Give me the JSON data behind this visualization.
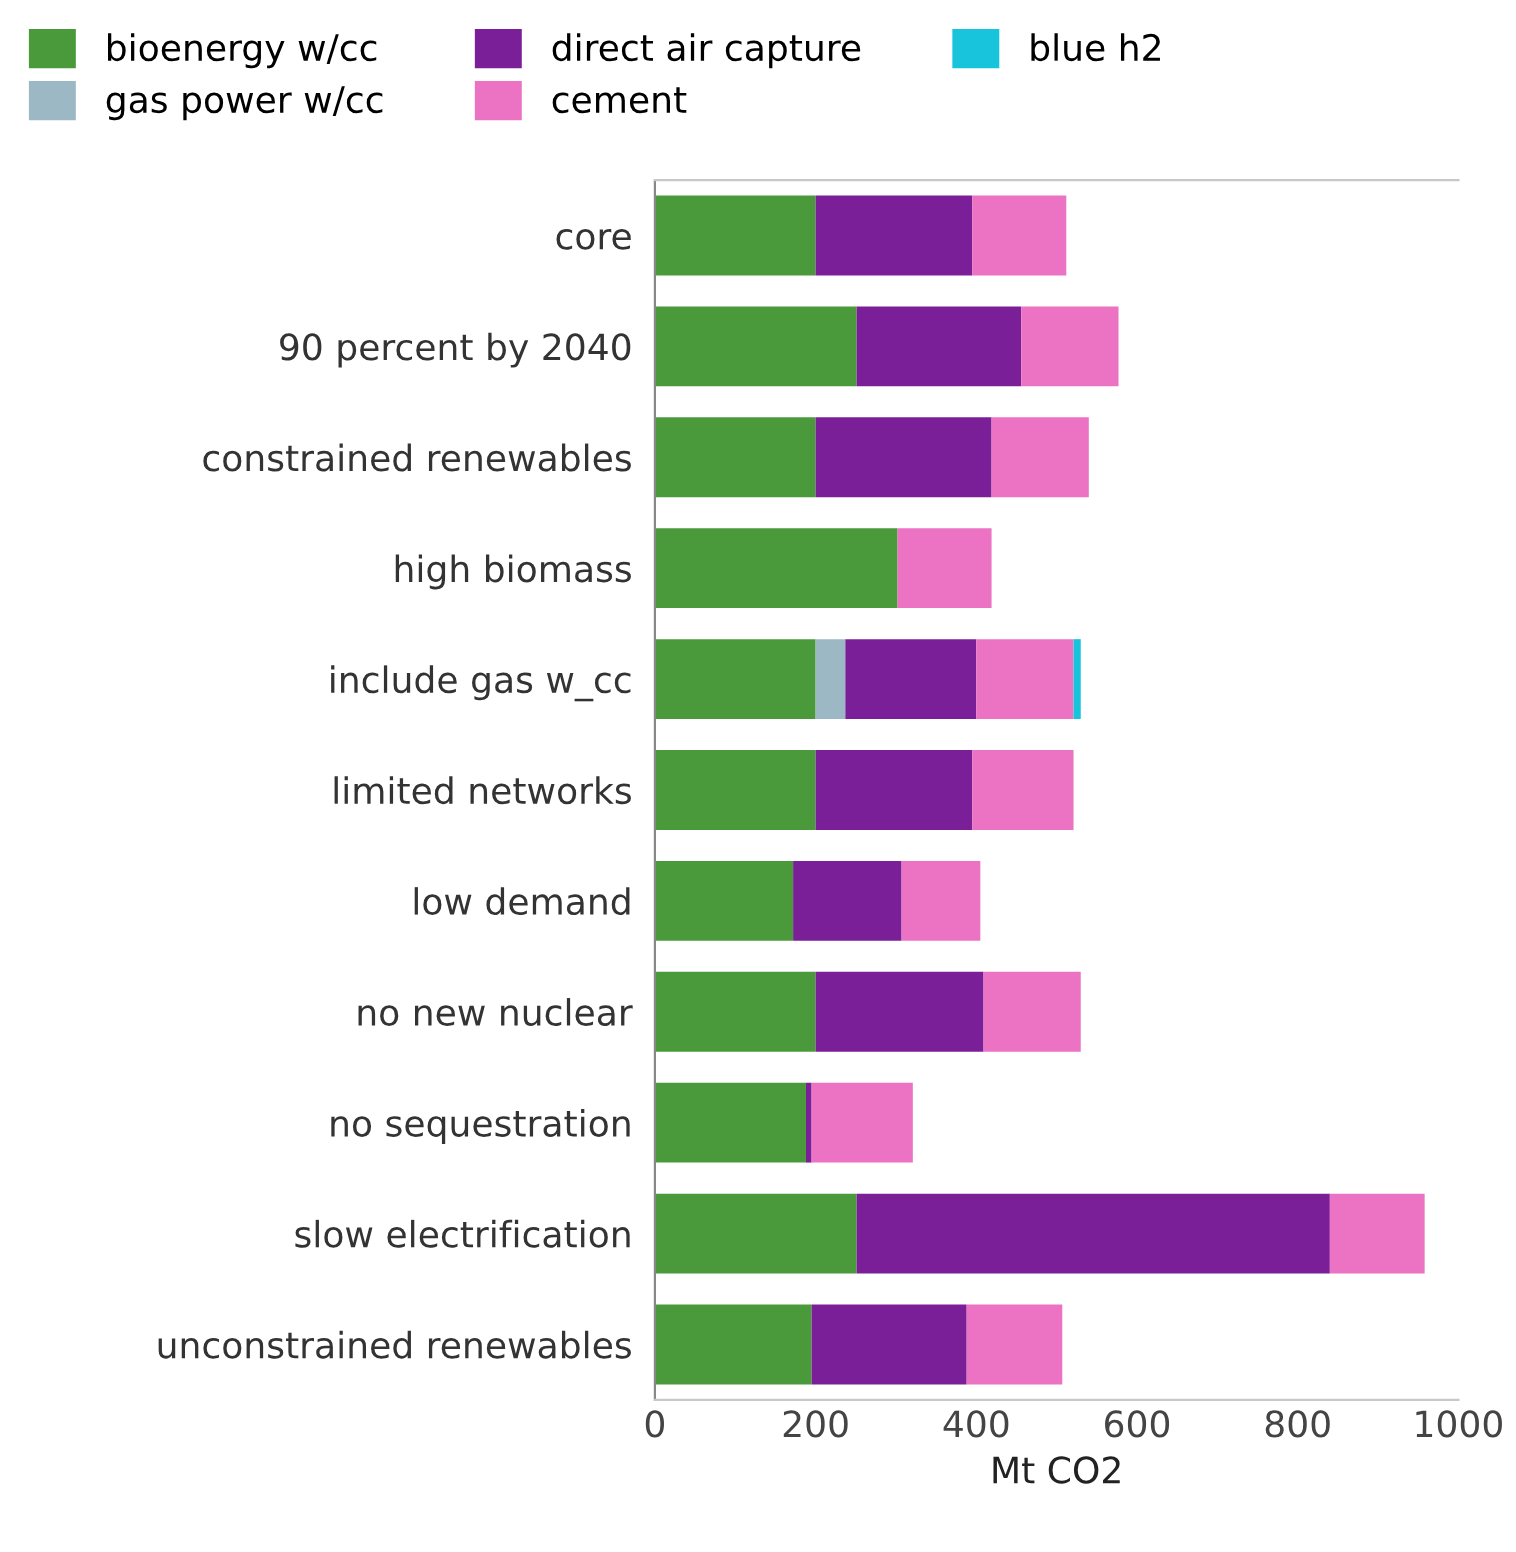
{
  "chart_data": {
    "type": "bar",
    "orientation": "horizontal",
    "stacked": true,
    "xlabel": "Mt CO2",
    "categories": [
      "core",
      "90 percent by 2040",
      "constrained renewables",
      "high biomass",
      "include gas w_cc",
      "limited networks",
      "low demand",
      "no new nuclear",
      "no sequestration",
      "slow electrification",
      "unconstrained renewables"
    ],
    "series": [
      {
        "name": "bioenergy w/cc",
        "color": "#4a9a3c",
        "values": [
          200,
          251,
          200,
          302,
          200,
          200,
          172,
          200,
          188,
          251,
          195
        ]
      },
      {
        "name": "gas power w/cc",
        "color": "#9bb8c4",
        "values": [
          0,
          0,
          0,
          0,
          37,
          0,
          0,
          0,
          0,
          0,
          0
        ]
      },
      {
        "name": "direct air capture",
        "color": "#7b1f98",
        "values": [
          195,
          205,
          219,
          0,
          163,
          195,
          135,
          209,
          7,
          589,
          193
        ]
      },
      {
        "name": "cement",
        "color": "#ec72c4",
        "values": [
          117,
          121,
          121,
          117,
          121,
          126,
          98,
          121,
          126,
          118,
          119
        ]
      },
      {
        "name": "blue h2",
        "color": "#18c4dc",
        "values": [
          0,
          0,
          0,
          0,
          9,
          0,
          0,
          0,
          0,
          0,
          0
        ]
      }
    ],
    "xlim": [
      0,
      1000
    ],
    "xticks": [
      0,
      200,
      400,
      600,
      800,
      1000
    ],
    "grid": false,
    "legend": "top"
  }
}
